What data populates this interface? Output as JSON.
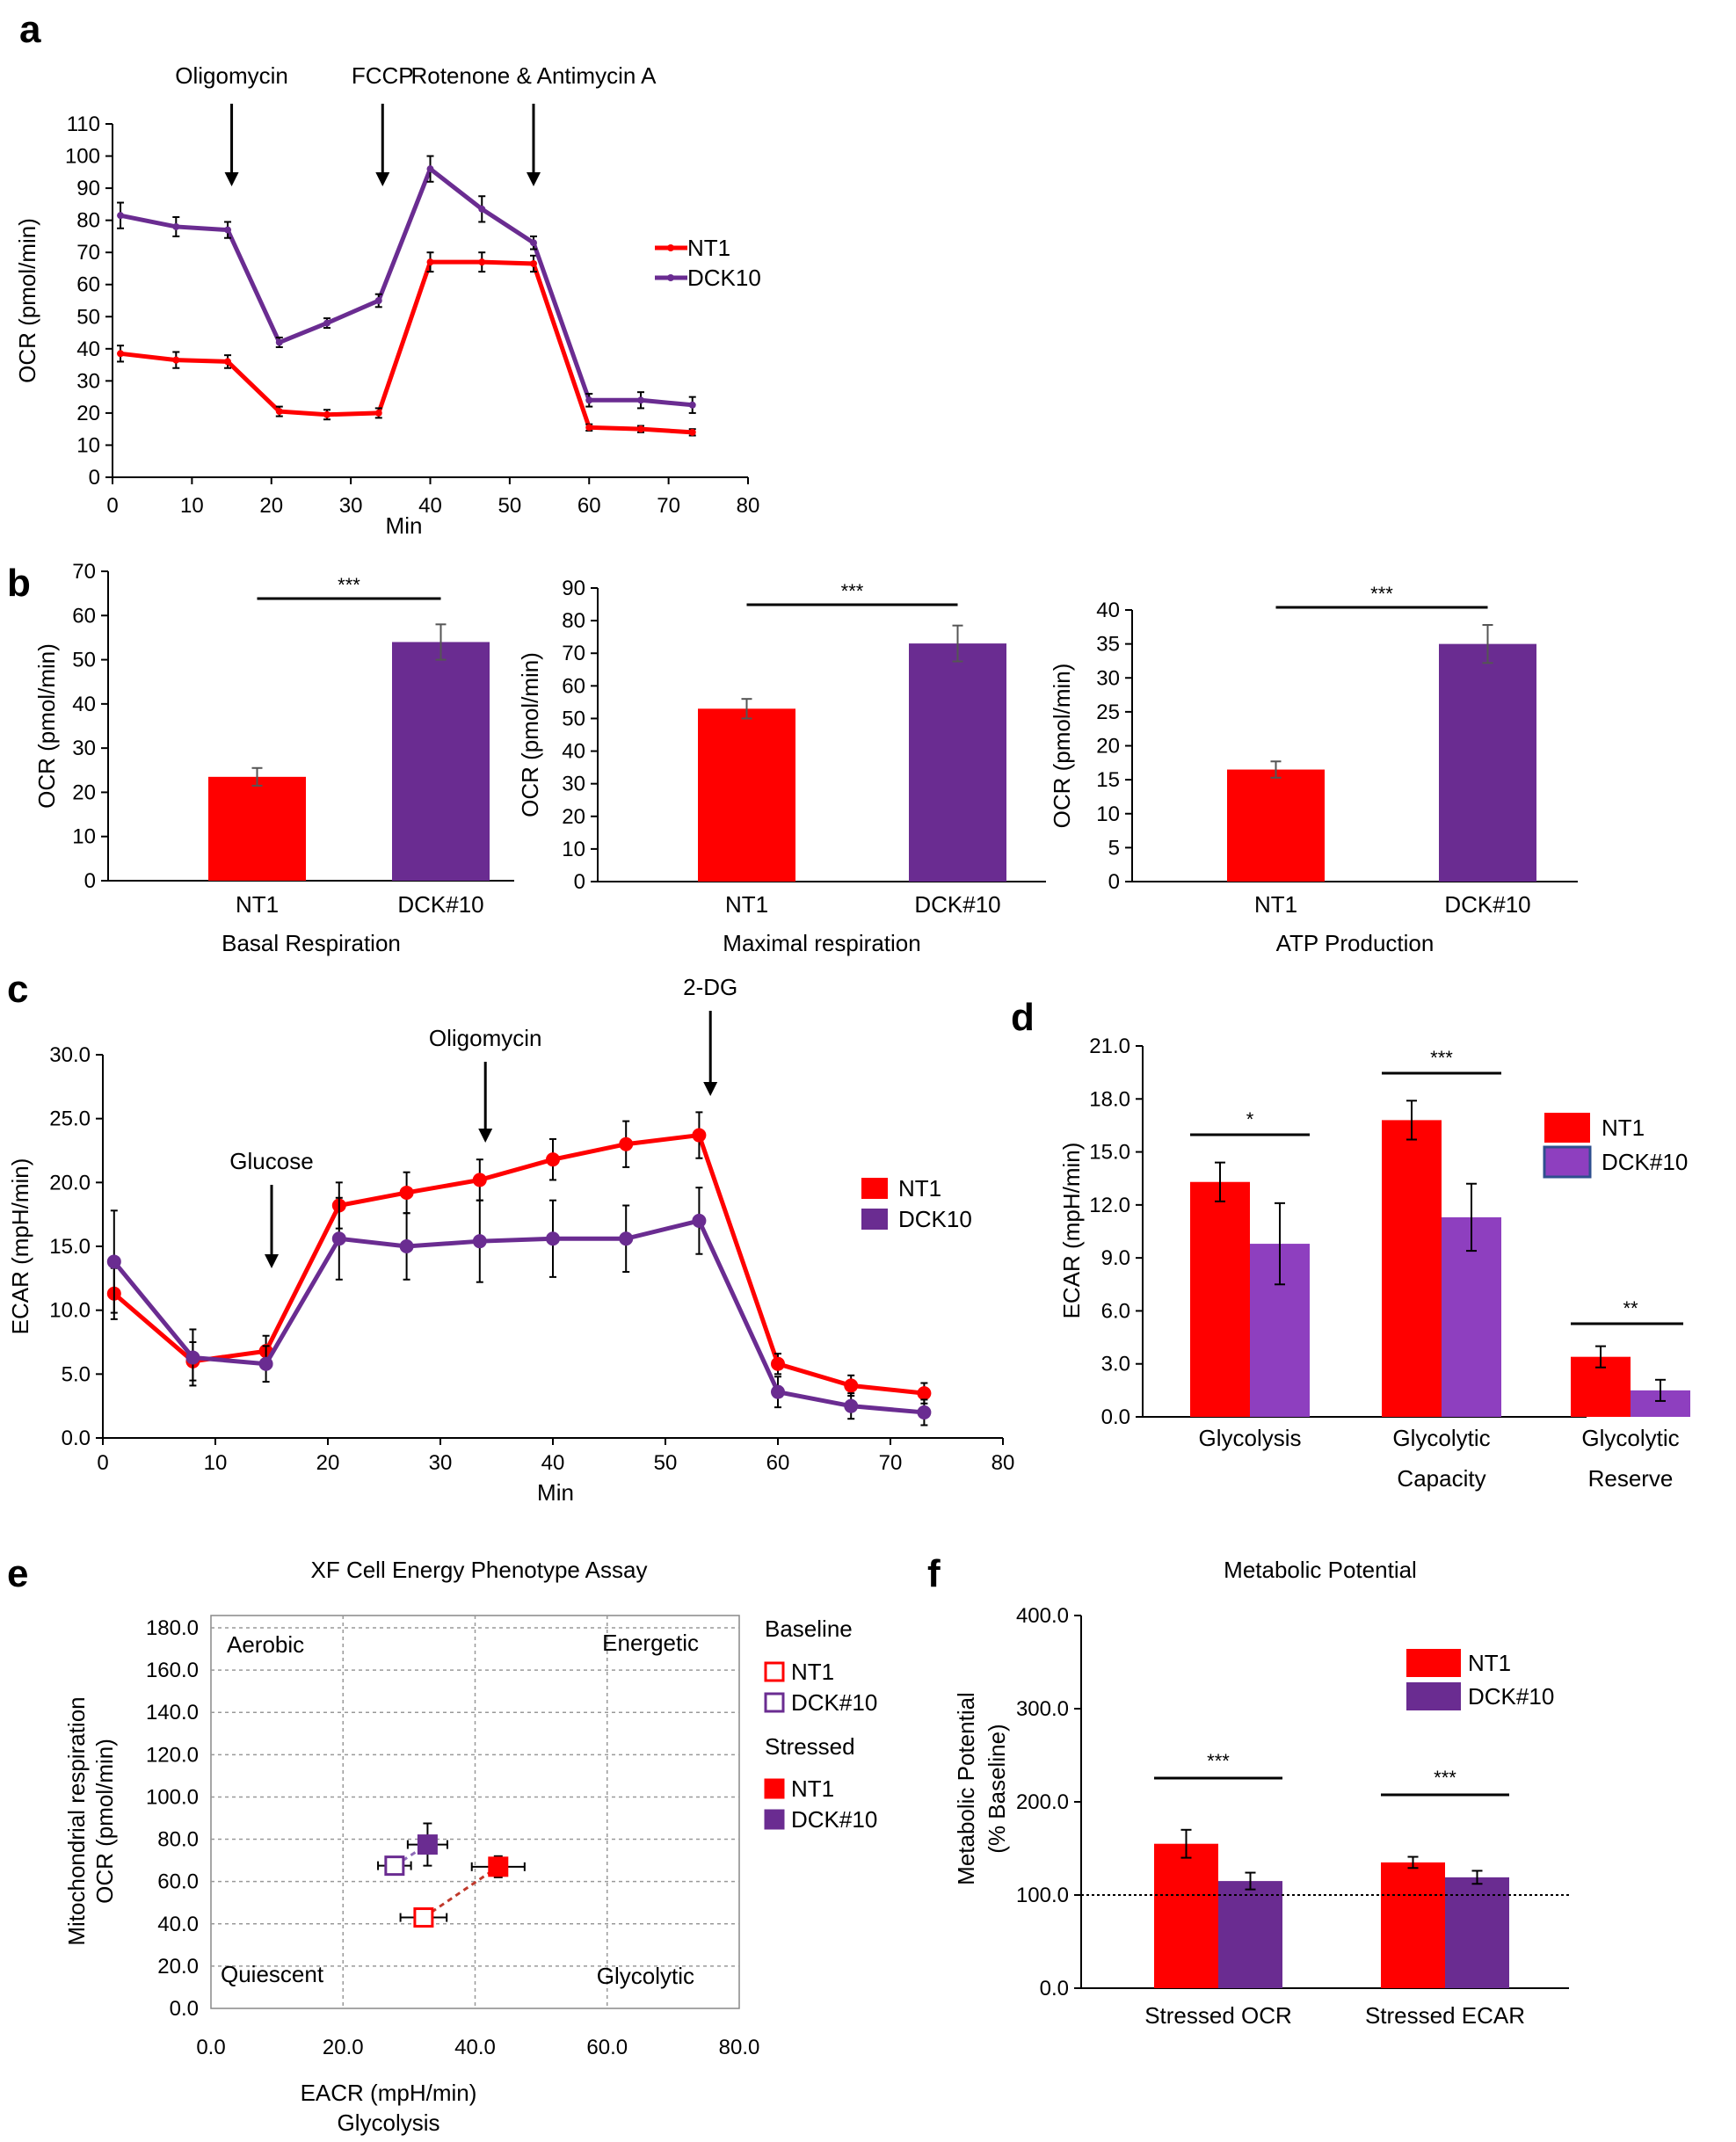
{
  "colors": {
    "nt1": "#ff0000",
    "dck": "#6a2c91",
    "dck_light": "#8e3fbf",
    "axis": "#000000",
    "grid": "#999999",
    "dashed_nt1": "#c0392b",
    "dashed_dck": "#8e6bb8"
  },
  "chart_data": [
    {
      "id": "a",
      "panel_letter": "a",
      "type": "line",
      "xlabel": "Min",
      "ylabel": "OCR (pmol/min)",
      "xlim": [
        0,
        80
      ],
      "ylim": [
        0,
        110
      ],
      "xticks": [
        "0",
        "10",
        "20",
        "30",
        "40",
        "50",
        "60",
        "70",
        "80"
      ],
      "yticks": [
        "0",
        "10",
        "20",
        "30",
        "40",
        "50",
        "60",
        "70",
        "80",
        "90",
        "100",
        "110"
      ],
      "annotations": [
        {
          "text": "Oligomycin",
          "x": 15
        },
        {
          "text": "FCCP",
          "x": 34
        },
        {
          "text": "Rotenone & Antimycin A",
          "x": 53
        }
      ],
      "series": [
        {
          "name": "NT1",
          "color": "#ff0000",
          "x": [
            1,
            8,
            14.5,
            21,
            27,
            33.5,
            40,
            46.5,
            53,
            60,
            66.5,
            73
          ],
          "y": [
            38.5,
            36.5,
            36,
            20.5,
            19.5,
            20,
            67,
            67,
            66.5,
            15.5,
            15,
            14
          ],
          "err": [
            2.5,
            2.5,
            2,
            1.5,
            1.5,
            1.5,
            3,
            3,
            2.5,
            1,
            1,
            1
          ]
        },
        {
          "name": "DCK10",
          "color": "#6a2c91",
          "x": [
            1,
            8,
            14.5,
            21,
            27,
            33.5,
            40,
            46.5,
            53,
            60,
            66.5,
            73
          ],
          "y": [
            81.5,
            78,
            77,
            42,
            48,
            55,
            96,
            83.5,
            73,
            24,
            24,
            22.5
          ],
          "err": [
            4,
            3,
            2.5,
            1.5,
            1.5,
            2,
            4,
            4,
            2,
            2,
            2.5,
            2.5
          ]
        }
      ]
    },
    {
      "id": "b1",
      "panel_letter": "b",
      "type": "bar",
      "xlabel": "Basal Respiration",
      "ylabel": "OCR (pmol/min)",
      "categories": [
        "NT1",
        "DCK#10"
      ],
      "values": [
        23.5,
        54
      ],
      "err": [
        2,
        4
      ],
      "ylim": [
        0,
        70
      ],
      "yticks": [
        "0",
        "10",
        "20",
        "30",
        "40",
        "50",
        "60",
        "70"
      ],
      "significance": "***"
    },
    {
      "id": "b2",
      "type": "bar",
      "xlabel": "Maximal respiration",
      "ylabel": "OCR (pmol/min)",
      "categories": [
        "NT1",
        "DCK#10"
      ],
      "values": [
        53,
        73
      ],
      "err": [
        3,
        5.5
      ],
      "ylim": [
        0,
        90
      ],
      "yticks": [
        "0",
        "10",
        "20",
        "30",
        "40",
        "50",
        "60",
        "70",
        "80",
        "90"
      ],
      "significance": "***"
    },
    {
      "id": "b3",
      "type": "bar",
      "xlabel": "ATP Production",
      "ylabel": "OCR (pmol/min)",
      "categories": [
        "NT1",
        "DCK#10"
      ],
      "values": [
        16.5,
        35
      ],
      "err": [
        1.2,
        2.8
      ],
      "ylim": [
        0,
        40
      ],
      "yticks": [
        "0",
        "5",
        "10",
        "15",
        "20",
        "25",
        "30",
        "35",
        "40"
      ],
      "significance": "***"
    },
    {
      "id": "c",
      "panel_letter": "c",
      "type": "line",
      "xlabel": "Min",
      "ylabel": "ECAR (mpH/min)",
      "xlim": [
        0,
        80
      ],
      "ylim": [
        0,
        30
      ],
      "xticks": [
        "0",
        "10",
        "20",
        "30",
        "40",
        "50",
        "60",
        "70",
        "80"
      ],
      "yticks": [
        "0.0",
        "5.0",
        "10.0",
        "15.0",
        "20.0",
        "25.0",
        "30.0"
      ],
      "annotations": [
        {
          "text": "Glucose",
          "x": 15
        },
        {
          "text": "Oligomycin",
          "x": 34
        },
        {
          "text": "2-DG",
          "x": 54
        }
      ],
      "series": [
        {
          "name": "NT1",
          "color": "#ff0000",
          "x": [
            1,
            8,
            14.5,
            21,
            27,
            33.5,
            40,
            46.5,
            53,
            60,
            66.5,
            73
          ],
          "y": [
            11.3,
            6.0,
            6.8,
            18.2,
            19.2,
            20.2,
            21.8,
            23.0,
            23.7,
            5.8,
            4.1,
            3.5
          ],
          "err": [
            2.0,
            1.5,
            1.2,
            1.8,
            1.6,
            1.6,
            1.6,
            1.8,
            1.8,
            0.8,
            0.8,
            0.8
          ]
        },
        {
          "name": "DCK10",
          "color": "#6a2c91",
          "x": [
            1,
            8,
            14.5,
            21,
            27,
            33.5,
            40,
            46.5,
            53,
            60,
            66.5,
            73
          ],
          "y": [
            13.8,
            6.3,
            5.8,
            15.6,
            15.0,
            15.4,
            15.6,
            15.6,
            17.0,
            3.6,
            2.5,
            2.0
          ],
          "err": [
            4.0,
            2.2,
            1.4,
            3.2,
            2.6,
            3.2,
            3.0,
            2.6,
            2.6,
            1.2,
            1.0,
            1.0
          ]
        }
      ]
    },
    {
      "id": "d",
      "panel_letter": "d",
      "type": "bar",
      "ylabel": "ECAR (mpH/min)",
      "categories": [
        [
          "Glycolysis"
        ],
        [
          "Glycolytic",
          "Capacity"
        ],
        [
          "Glycolytic",
          "Reserve"
        ]
      ],
      "ylim": [
        0,
        21
      ],
      "yticks": [
        "0.0",
        "3.0",
        "6.0",
        "9.0",
        "12.0",
        "15.0",
        "18.0",
        "21.0"
      ],
      "series": [
        {
          "name": "NT1",
          "color": "#ff0000",
          "values": [
            13.3,
            16.8,
            3.4
          ],
          "err": [
            1.1,
            1.1,
            0.6
          ]
        },
        {
          "name": "DCK#10",
          "color": "#8e3fbf",
          "values": [
            9.8,
            11.3,
            1.5
          ],
          "err": [
            2.3,
            1.9,
            0.6
          ]
        }
      ],
      "significance": [
        "*",
        "***",
        "**"
      ]
    },
    {
      "id": "e",
      "panel_letter": "e",
      "type": "scatter",
      "title": "XF Cell Energy Phenotype Assay",
      "xlabel": [
        "EACR (mpH/min)",
        "Glycolysis"
      ],
      "ylabel": [
        "Mitochondrial respiration",
        "OCR (pmol/min)"
      ],
      "xlim": [
        0,
        80
      ],
      "ylim": [
        0,
        180
      ],
      "xticks": [
        "0.0",
        "20.0",
        "40.0",
        "60.0",
        "80.0"
      ],
      "yticks": [
        "0.0",
        "20.0",
        "40.0",
        "60.0",
        "80.0",
        "100.0",
        "120.0",
        "140.0",
        "160.0",
        "180.0"
      ],
      "quadrants": [
        "Aerobic",
        "Energetic",
        "Quiescent",
        "Glycolytic"
      ],
      "legend_groups": [
        "Baseline",
        "Stressed"
      ],
      "series": [
        {
          "name": "NT1",
          "group": "Baseline",
          "filled": false,
          "color": "#ff0000",
          "x": 32.2,
          "y": 43.0,
          "xerr": 3.5,
          "yerr": 2.5
        },
        {
          "name": "DCK#10",
          "group": "Baseline",
          "filled": false,
          "color": "#6a2c91",
          "x": 27.8,
          "y": 67.5,
          "xerr": 2.5,
          "yerr": 4
        },
        {
          "name": "NT1",
          "group": "Stressed",
          "filled": true,
          "color": "#ff0000",
          "x": 43.5,
          "y": 67.0,
          "xerr": 4,
          "yerr": 5
        },
        {
          "name": "DCK#10",
          "group": "Stressed",
          "filled": true,
          "color": "#6a2c91",
          "x": 32.8,
          "y": 77.5,
          "xerr": 3,
          "yerr": 10
        }
      ]
    },
    {
      "id": "f",
      "panel_letter": "f",
      "type": "bar",
      "title": "Metabolic Potential",
      "ylabel": [
        "Metabolic Potential",
        "(% Baseline)"
      ],
      "categories": [
        "Stressed OCR",
        "Stressed ECAR"
      ],
      "ylim": [
        0,
        400
      ],
      "yticks": [
        "0.0",
        "100.0",
        "200.0",
        "300.0",
        "400.0"
      ],
      "baseline": 100,
      "series": [
        {
          "name": "NT1",
          "color": "#ff0000",
          "values": [
            155,
            135
          ],
          "err": [
            15,
            6
          ]
        },
        {
          "name": "DCK#10",
          "color": "#6a2c91",
          "values": [
            115,
            119
          ],
          "err": [
            9,
            7
          ]
        }
      ],
      "significance": [
        "***",
        "***"
      ]
    }
  ]
}
